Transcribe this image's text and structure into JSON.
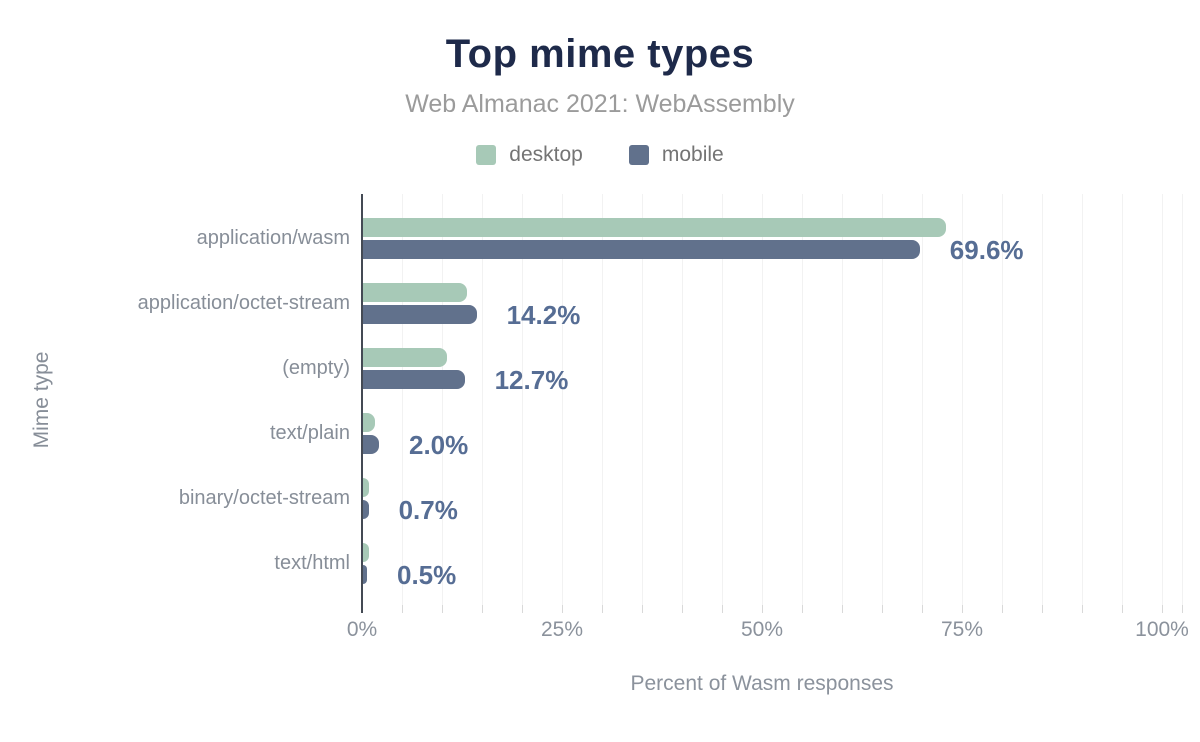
{
  "chart_data": {
    "type": "bar",
    "orientation": "horizontal",
    "title": "Top mime types",
    "subtitle": "Web Almanac 2021: WebAssembly",
    "xlabel": "Percent of Wasm responses",
    "ylabel": "Mime type",
    "xlim": [
      0,
      100
    ],
    "xticks": [
      {
        "value": 0,
        "label": "0%"
      },
      {
        "value": 25,
        "label": "25%"
      },
      {
        "value": 50,
        "label": "50%"
      },
      {
        "value": 75,
        "label": "75%"
      },
      {
        "value": 100,
        "label": "100%"
      }
    ],
    "grid": "vertical minor gridlines every 5%",
    "legend_position": "top-center",
    "categories": [
      "application/wasm",
      "application/octet-stream",
      "(empty)",
      "text/plain",
      "binary/octet-stream",
      "text/html"
    ],
    "series": [
      {
        "name": "desktop",
        "color": "#a7c9b7",
        "values": [
          72.9,
          13.0,
          10.5,
          1.5,
          0.8,
          0.7
        ]
      },
      {
        "name": "mobile",
        "color": "#61718c",
        "values": [
          69.6,
          14.2,
          12.7,
          2.0,
          0.7,
          0.5
        ]
      }
    ],
    "value_labels": [
      "69.6%",
      "14.2%",
      "12.7%",
      "2.0%",
      "0.7%",
      "0.5%"
    ],
    "value_labels_series": "mobile"
  },
  "palette": {
    "background": "#ffffff",
    "title_text": "#1e2a4a",
    "subtitle_text": "#9b9b9b",
    "legend_text": "#747474",
    "axis_text": "#8b929c",
    "category_text": "#878e98",
    "value_label_text": "#566d94",
    "axis_line": "#444a54",
    "gridline": "#f2f2f2",
    "tick": "#d9d9d9",
    "desktop_bar": "#a7c9b7",
    "mobile_bar": "#61718c"
  }
}
